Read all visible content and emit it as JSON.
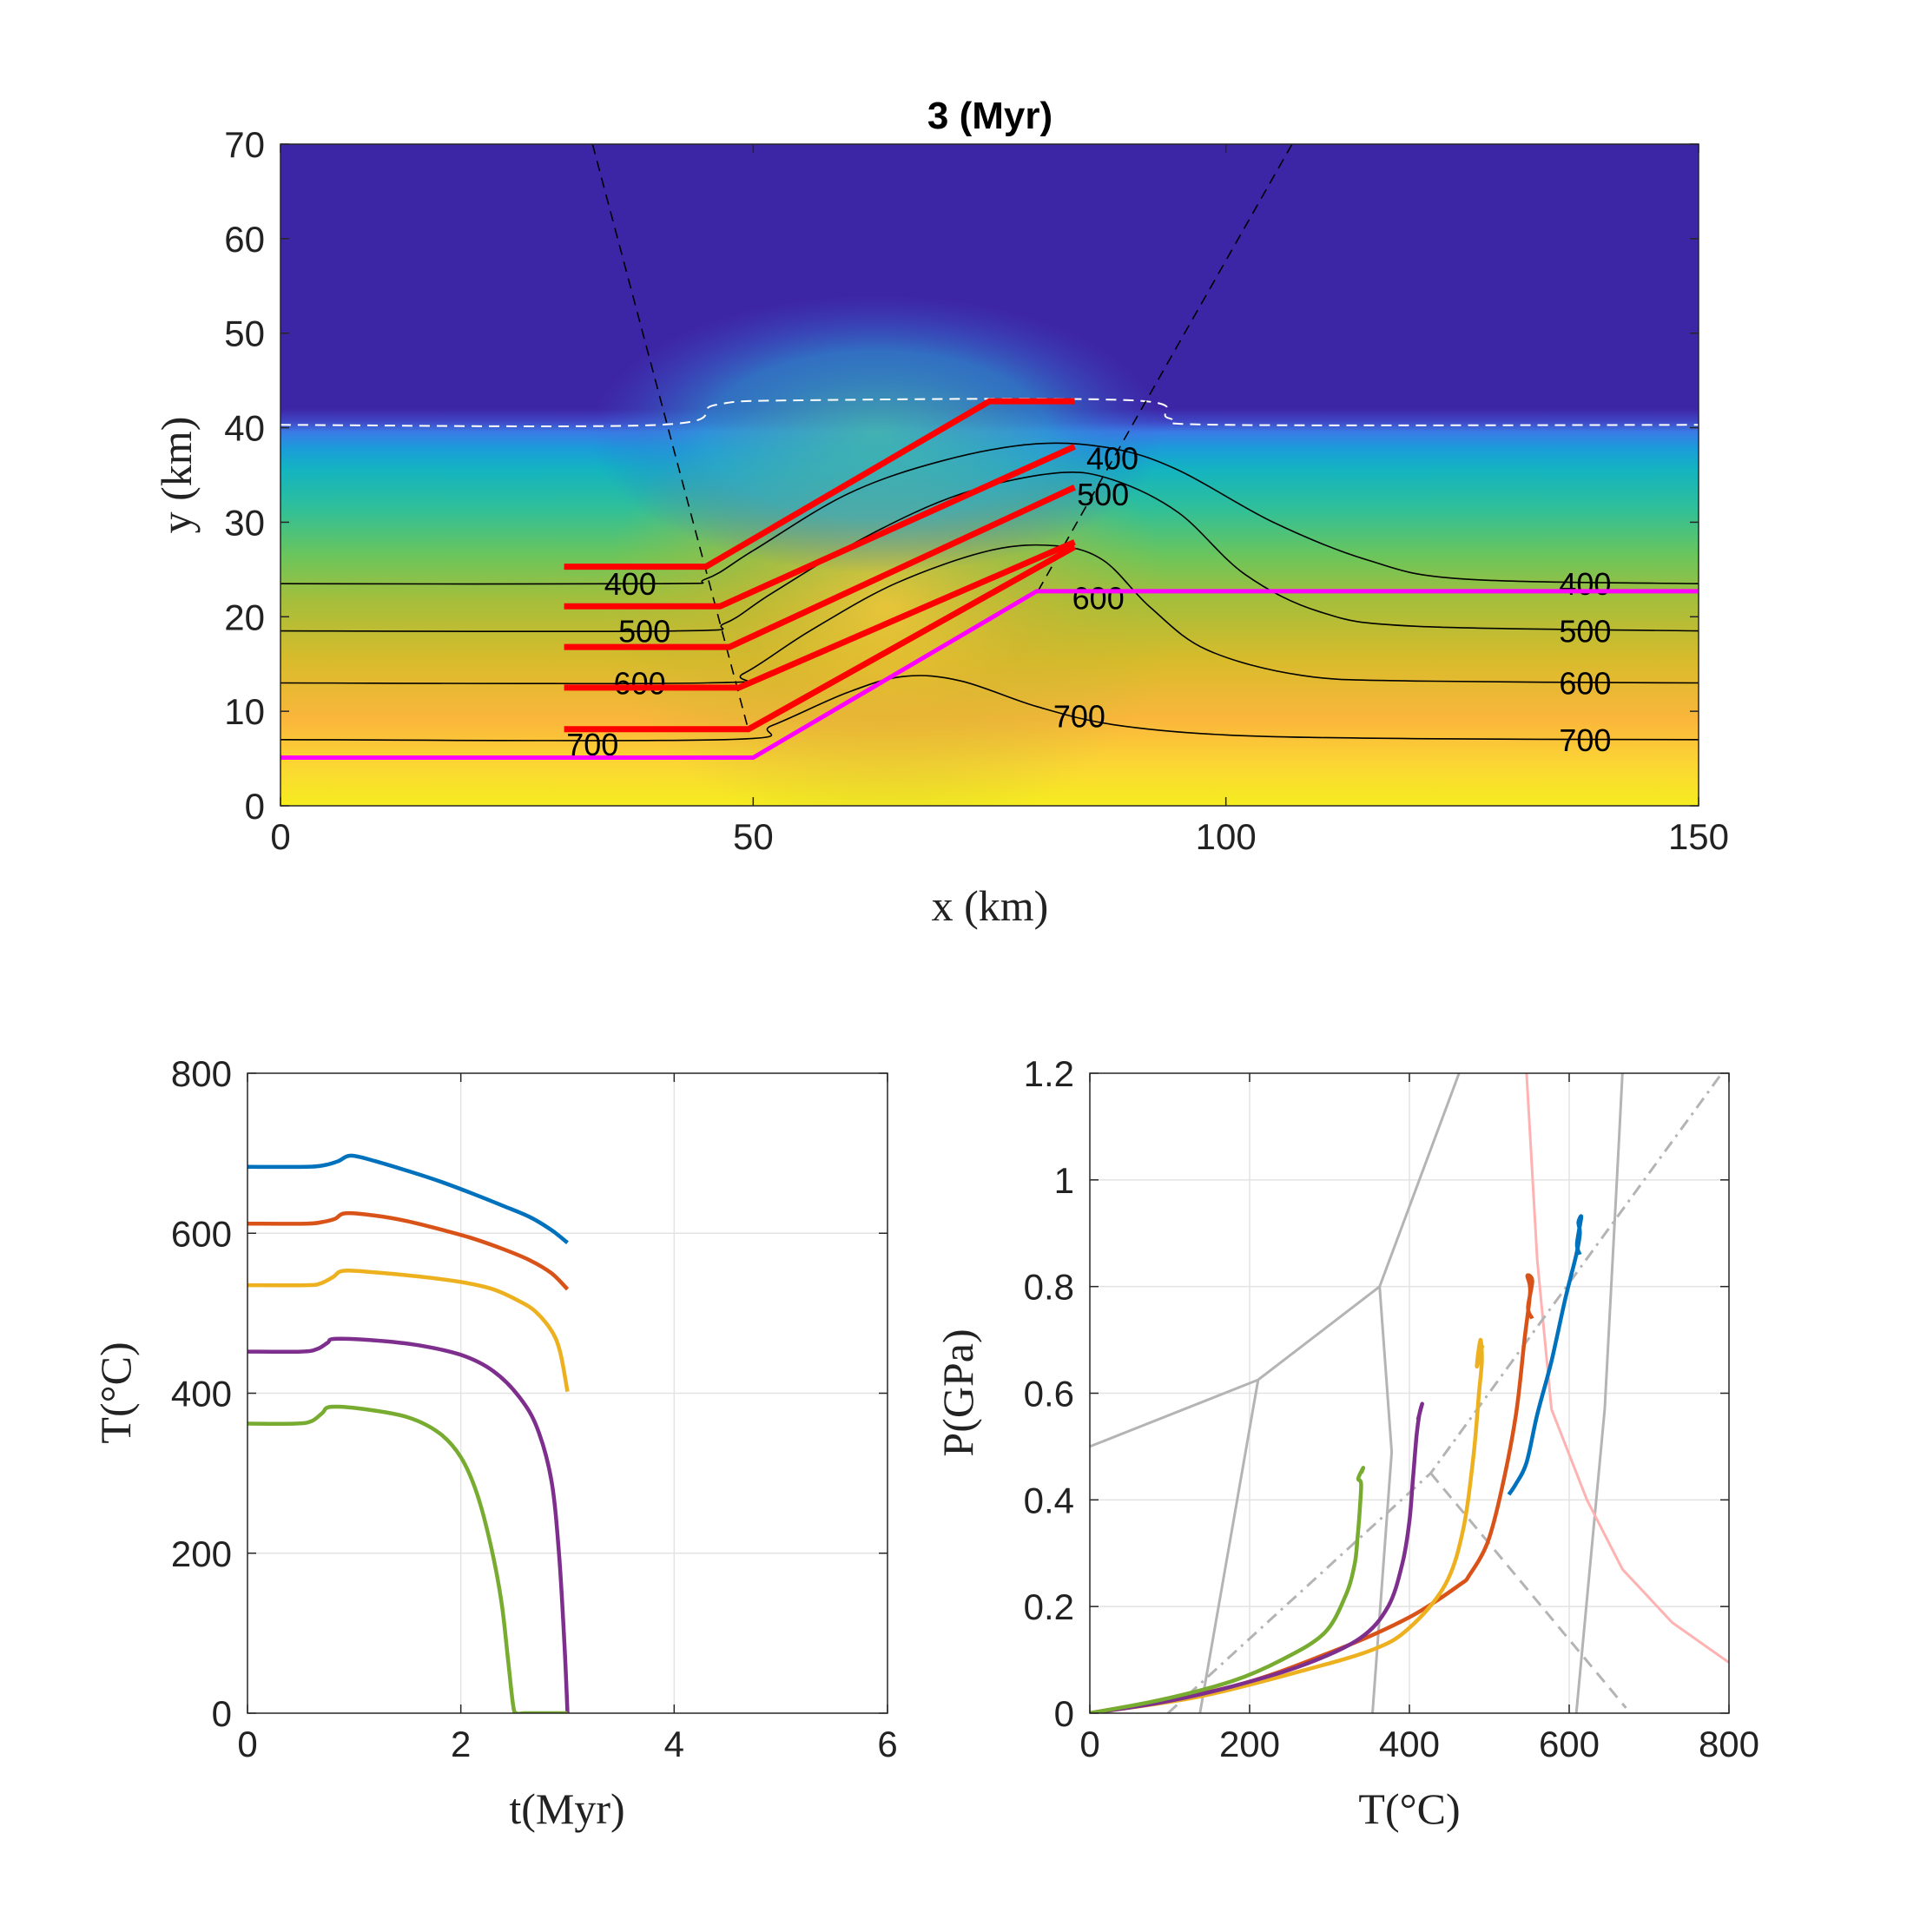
{
  "chart_data": [
    {
      "type": "heatmap",
      "title": "3 (Myr)",
      "xlabel": "x (km)",
      "ylabel": "y (km)",
      "xlim": [
        0,
        150
      ],
      "ylim": [
        0,
        70
      ],
      "xticks": [
        "0",
        "50",
        "100",
        "150"
      ],
      "yticks": [
        "0",
        "10",
        "20",
        "30",
        "40",
        "50",
        "60",
        "70"
      ],
      "grid": false,
      "colormap": "parula",
      "colors": {
        "isotherm": "#000000",
        "surface": "#ffffff",
        "fault": "#000000",
        "layer": "#ff0000",
        "detachment": "#ff00ff"
      },
      "surface_line": [
        [
          0,
          40.3
        ],
        [
          40,
          40.3
        ],
        [
          46,
          42.4
        ],
        [
          55,
          42.9
        ],
        [
          90,
          42.9
        ],
        [
          94,
          41.0
        ],
        [
          100,
          40.3
        ],
        [
          150,
          40.3
        ]
      ],
      "fault_lines": [
        [
          [
            33,
            70
          ],
          [
            49.5,
            8
          ]
        ],
        [
          [
            107,
            70
          ],
          [
            80,
            22.5
          ]
        ]
      ],
      "isotherms": [
        {
          "label": "400",
          "points": [
            [
              0,
              23.5
            ],
            [
              40,
              23.5
            ],
            [
              45,
              24.0
            ],
            [
              50,
              27.0
            ],
            [
              60,
              33.0
            ],
            [
              70,
              36.5
            ],
            [
              80,
              38.3
            ],
            [
              88,
              37.8
            ],
            [
              95,
              35.5
            ],
            [
              105,
              30.0
            ],
            [
              115,
              26.0
            ],
            [
              125,
              24.0
            ],
            [
              150,
              23.5
            ]
          ],
          "label_positions": [
            [
              37,
              23.5
            ],
            [
              88,
              36.8
            ],
            [
              138,
              23.5
            ]
          ]
        },
        {
          "label": "500",
          "points": [
            [
              0,
              18.5
            ],
            [
              42,
              18.5
            ],
            [
              47,
              19.3
            ],
            [
              52,
              22.5
            ],
            [
              62,
              28.5
            ],
            [
              72,
              33.0
            ],
            [
              82,
              35.2
            ],
            [
              88,
              34.5
            ],
            [
              95,
              31.0
            ],
            [
              102,
              24.5
            ],
            [
              110,
              20.5
            ],
            [
              120,
              19.0
            ],
            [
              150,
              18.5
            ]
          ],
          "label_positions": [
            [
              38.5,
              18.5
            ],
            [
              87,
              33.0
            ],
            [
              138,
              18.5
            ]
          ]
        },
        {
          "label": "600",
          "points": [
            [
              0,
              13.0
            ],
            [
              45,
              13.0
            ],
            [
              49,
              14.0
            ],
            [
              56,
              18.5
            ],
            [
              65,
              23.5
            ],
            [
              75,
              27.0
            ],
            [
              82,
              27.5
            ],
            [
              87,
              26.0
            ],
            [
              92,
              21.0
            ],
            [
              98,
              16.5
            ],
            [
              108,
              13.8
            ],
            [
              120,
              13.2
            ],
            [
              150,
              13.0
            ]
          ],
          "label_positions": [
            [
              38,
              13.0
            ],
            [
              86.5,
              22.0
            ],
            [
              138,
              13.0
            ]
          ]
        },
        {
          "label": "700",
          "points": [
            [
              0,
              7.0
            ],
            [
              47,
              7.0
            ],
            [
              52,
              8.5
            ],
            [
              60,
              12.0
            ],
            [
              66,
              13.7
            ],
            [
              72,
              13.2
            ],
            [
              80,
              10.5
            ],
            [
              88,
              8.6
            ],
            [
              100,
              7.5
            ],
            [
              120,
              7.1
            ],
            [
              150,
              7.0
            ]
          ],
          "label_positions": [
            [
              33,
              6.5
            ],
            [
              84.5,
              9.5
            ],
            [
              138,
              7.0
            ]
          ]
        }
      ],
      "isotherm_labels": [
        "400",
        "500",
        "600",
        "700"
      ],
      "red_layers": [
        [
          [
            30,
            25.3
          ],
          [
            45,
            25.3
          ],
          [
            75,
            42.8
          ],
          [
            84,
            42.8
          ]
        ],
        [
          [
            30,
            21.1
          ],
          [
            46.5,
            21.1
          ],
          [
            84,
            38.0
          ]
        ],
        [
          [
            30,
            16.8
          ],
          [
            47.5,
            16.8
          ],
          [
            84,
            33.7
          ]
        ],
        [
          [
            30,
            12.5
          ],
          [
            48.5,
            12.5
          ],
          [
            84,
            27.9
          ]
        ],
        [
          [
            30,
            8.1
          ],
          [
            49.5,
            8.1
          ],
          [
            84,
            27.4
          ]
        ]
      ],
      "detachment": [
        [
          0,
          5.1
        ],
        [
          50,
          5.1
        ],
        [
          80,
          22.7
        ],
        [
          150,
          22.7
        ]
      ]
    },
    {
      "type": "line",
      "xlabel": "t(Myr)",
      "ylabel": "T(°C)",
      "xlim": [
        0,
        6
      ],
      "ylim": [
        0,
        800
      ],
      "xticks": [
        "0",
        "2",
        "4",
        "6"
      ],
      "yticks": [
        "0",
        "200",
        "400",
        "600",
        "800"
      ],
      "grid": true,
      "series": [
        {
          "color": "#0072BD",
          "x": [
            0,
            0.55,
            0.72,
            0.85,
            0.97,
            1.2,
            1.5,
            1.8,
            2.1,
            2.4,
            2.65,
            2.85,
            3.0
          ],
          "y": [
            683,
            683,
            685,
            690,
            697,
            690,
            678,
            665,
            650,
            634,
            620,
            604,
            588
          ]
        },
        {
          "color": "#D95319",
          "x": [
            0,
            0.55,
            0.7,
            0.82,
            0.92,
            1.2,
            1.5,
            1.8,
            2.1,
            2.4,
            2.65,
            2.85,
            3.0
          ],
          "y": [
            612,
            612,
            614,
            618,
            625,
            622,
            615,
            605,
            594,
            580,
            566,
            550,
            530
          ]
        },
        {
          "color": "#EDB120",
          "x": [
            0,
            0.55,
            0.68,
            0.8,
            0.9,
            1.2,
            1.6,
            2.0,
            2.3,
            2.55,
            2.7,
            2.85,
            2.93,
            3.0
          ],
          "y": [
            535,
            535,
            537,
            545,
            553,
            551,
            546,
            539,
            530,
            515,
            502,
            478,
            452,
            402
          ]
        },
        {
          "color": "#7E2F8E",
          "x": [
            0,
            0.5,
            0.65,
            0.75,
            0.82,
            1.2,
            1.6,
            2.0,
            2.3,
            2.55,
            2.72,
            2.85,
            2.92,
            2.97,
            3.0
          ],
          "y": [
            452,
            452,
            455,
            463,
            468,
            466,
            460,
            448,
            428,
            395,
            355,
            290,
            200,
            90,
            0
          ]
        },
        {
          "color": "#77AC30",
          "x": [
            0,
            0.45,
            0.6,
            0.7,
            0.78,
            1.1,
            1.5,
            1.8,
            2.0,
            2.15,
            2.28,
            2.38,
            2.44,
            2.49,
            2.52,
            2.6,
            2.8,
            3.0
          ],
          "y": [
            362,
            362,
            365,
            375,
            383,
            380,
            370,
            350,
            320,
            275,
            210,
            140,
            70,
            10,
            0,
            0,
            0,
            0
          ]
        }
      ]
    },
    {
      "type": "line",
      "xlabel": "T(°C)",
      "ylabel": "P(GPa)",
      "xlim": [
        0,
        900
      ],
      "ylim": [
        0,
        1.2
      ],
      "xticks": [
        "0",
        "200",
        "400",
        "600",
        "800"
      ],
      "yticks": [
        "0",
        "0.2",
        "0.4",
        "0.6",
        "0.8",
        "1",
        "1.2"
      ],
      "grid": true,
      "reference_lines": [
        {
          "style": "solid",
          "color": "#b4b4b4",
          "points": [
            [
              0,
              0.5
            ],
            [
              237,
              0.625
            ],
            [
              408,
              0.8
            ],
            [
              520,
              1.2
            ]
          ]
        },
        {
          "style": "solid",
          "color": "#b4b4b4",
          "points": [
            [
              155,
              0.0
            ],
            [
              237,
              0.625
            ]
          ]
        },
        {
          "style": "solid",
          "color": "#b4b4b4",
          "points": [
            [
              408,
              0.8
            ],
            [
              425,
              0.49
            ],
            [
              398,
              0.0
            ]
          ]
        },
        {
          "style": "solid",
          "color": "#b4b4b4",
          "points": [
            [
              685,
              0.0
            ],
            [
              725,
              0.57
            ],
            [
              745,
              1.07
            ],
            [
              750,
              1.2
            ]
          ]
        },
        {
          "style": "solid",
          "color": "#ffb2b2",
          "points": [
            [
              615,
              1.2
            ],
            [
              630,
              0.85
            ],
            [
              650,
              0.57
            ],
            [
              700,
              0.4
            ],
            [
              750,
              0.27
            ],
            [
              820,
              0.17
            ],
            [
              900,
              0.095
            ]
          ]
        },
        {
          "style": "dashdot",
          "color": "#b4b4b4",
          "points": [
            [
              110,
              0.0
            ],
            [
              480,
              0.45
            ],
            [
              890,
              1.2
            ]
          ]
        },
        {
          "style": "dashed",
          "color": "#b4b4b4",
          "points": [
            [
              480,
              0.45
            ],
            [
              755,
              0.01
            ]
          ]
        }
      ],
      "series": [
        {
          "color": "#0072BD",
          "x": [
            590,
            600,
            615,
            630,
            650,
            670,
            685,
            690,
            688,
            692,
            686,
            690
          ],
          "y": [
            0.41,
            0.43,
            0.47,
            0.56,
            0.66,
            0.78,
            0.86,
            0.9,
            0.92,
            0.93,
            0.88,
            0.86
          ]
        },
        {
          "color": "#D95319",
          "x": [
            0,
            200,
            350,
            450,
            520,
            535,
            560,
            580,
            600,
            612,
            620,
            616,
            623,
            617,
            623
          ],
          "y": [
            0.0,
            0.05,
            0.12,
            0.18,
            0.24,
            0.26,
            0.32,
            0.42,
            0.56,
            0.7,
            0.79,
            0.82,
            0.81,
            0.76,
            0.74
          ]
        },
        {
          "color": "#EDB120",
          "x": [
            0,
            150,
            300,
            400,
            450,
            500,
            525,
            540,
            548,
            552,
            550,
            545,
            553
          ],
          "y": [
            0.0,
            0.03,
            0.08,
            0.12,
            0.16,
            0.24,
            0.34,
            0.48,
            0.6,
            0.66,
            0.7,
            0.65,
            0.69
          ]
        },
        {
          "color": "#7E2F8E",
          "x": [
            0,
            100,
            200,
            300,
            380,
            420,
            440,
            450,
            455,
            460,
            464,
            468,
            462
          ],
          "y": [
            0.0,
            0.02,
            0.05,
            0.09,
            0.14,
            0.2,
            0.28,
            0.36,
            0.44,
            0.52,
            0.56,
            0.58,
            0.55
          ]
        },
        {
          "color": "#77AC30",
          "x": [
            0,
            100,
            200,
            270,
            330,
            360,
            373,
            377,
            380,
            382,
            378,
            385,
            382
          ],
          "y": [
            0.0,
            0.025,
            0.06,
            0.1,
            0.15,
            0.22,
            0.28,
            0.33,
            0.38,
            0.43,
            0.44,
            0.46,
            0.45
          ]
        }
      ]
    }
  ]
}
